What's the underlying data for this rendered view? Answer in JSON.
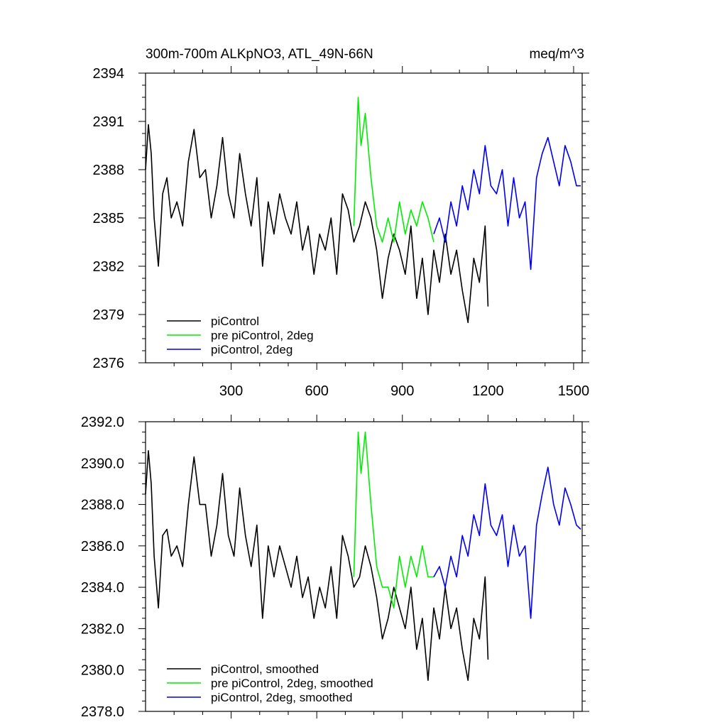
{
  "chart_data": [
    {
      "type": "line",
      "title": "300m-700m ALKpNO3, ATL_49N-66N",
      "units": "meq/m^3",
      "xlim": [
        0,
        1530
      ],
      "ylim": [
        2376,
        2394
      ],
      "xticks": [
        300,
        600,
        900,
        1200,
        1500
      ],
      "yticks": [
        2376,
        2379,
        2382,
        2385,
        2388,
        2391,
        2394
      ],
      "ytick_labels": [
        "2376",
        "2379",
        "2382",
        "2385",
        "2388",
        "2391",
        "2394"
      ],
      "legend": "bottom-left",
      "series": [
        {
          "name": "piControl",
          "color": "#000000",
          "x": [
            0,
            10,
            20,
            30,
            45,
            60,
            75,
            90,
            110,
            130,
            150,
            170,
            190,
            210,
            230,
            250,
            270,
            290,
            310,
            330,
            350,
            370,
            390,
            410,
            430,
            450,
            470,
            490,
            510,
            530,
            550,
            570,
            590,
            610,
            630,
            650,
            670,
            690,
            710,
            730,
            750,
            770,
            790,
            810,
            830,
            850,
            870,
            890,
            910,
            930,
            950,
            970,
            990,
            1010,
            1030,
            1050,
            1070,
            1090,
            1110,
            1130,
            1150,
            1170,
            1190,
            1200
          ],
          "y": [
            2388.0,
            2390.8,
            2389.0,
            2385.0,
            2382.0,
            2386.5,
            2387.5,
            2385.0,
            2386.0,
            2384.5,
            2388.5,
            2390.5,
            2387.5,
            2388.0,
            2385.0,
            2387.0,
            2390.0,
            2386.5,
            2385.0,
            2389.0,
            2386.5,
            2384.5,
            2387.5,
            2382.0,
            2386.0,
            2384.0,
            2386.5,
            2385.0,
            2384.0,
            2386.0,
            2383.0,
            2384.5,
            2381.5,
            2384.0,
            2383.0,
            2385.0,
            2381.5,
            2386.5,
            2385.5,
            2383.5,
            2384.5,
            2386.0,
            2385.0,
            2383.0,
            2380.0,
            2382.5,
            2384.0,
            2383.0,
            2381.5,
            2384.5,
            2380.0,
            2382.5,
            2379.0,
            2383.0,
            2381.0,
            2384.0,
            2381.5,
            2383.0,
            2380.5,
            2378.5,
            2382.5,
            2381.0,
            2384.5,
            2379.5
          ]
        },
        {
          "name": "pre piControl, 2deg",
          "color": "#00ee00",
          "x": [
            730,
            745,
            755,
            770,
            790,
            810,
            830,
            850,
            870,
            890,
            910,
            930,
            950,
            970,
            990,
            1010
          ],
          "y": [
            2384.5,
            2392.5,
            2389.5,
            2391.5,
            2387.5,
            2384.5,
            2383.5,
            2385.0,
            2383.5,
            2386.0,
            2384.0,
            2385.5,
            2384.5,
            2386.0,
            2385.0,
            2383.5
          ]
        },
        {
          "name": "piControl, 2deg",
          "color": "#0000ee",
          "x": [
            1010,
            1030,
            1050,
            1070,
            1090,
            1110,
            1130,
            1150,
            1170,
            1190,
            1210,
            1230,
            1250,
            1270,
            1290,
            1310,
            1330,
            1350,
            1370,
            1390,
            1410,
            1430,
            1450,
            1470,
            1490,
            1510,
            1525
          ],
          "y": [
            2384.0,
            2385.0,
            2383.5,
            2386.0,
            2384.5,
            2387.0,
            2385.5,
            2388.0,
            2386.5,
            2389.5,
            2387.0,
            2386.5,
            2388.0,
            2384.5,
            2387.5,
            2385.0,
            2386.0,
            2381.8,
            2387.5,
            2389.0,
            2390.0,
            2388.5,
            2387.0,
            2389.5,
            2388.5,
            2387.0,
            2387.0
          ]
        }
      ]
    },
    {
      "type": "line",
      "title": "",
      "xlim": [
        0,
        1530
      ],
      "ylim": [
        2378.0,
        2392.0
      ],
      "xticks": [
        300,
        600,
        900,
        1200,
        1500
      ],
      "yticks": [
        2378.0,
        2380.0,
        2382.0,
        2384.0,
        2386.0,
        2388.0,
        2390.0,
        2392.0
      ],
      "ytick_labels": [
        "2378.0",
        "2380.0",
        "2382.0",
        "2384.0",
        "2386.0",
        "2388.0",
        "2390.0",
        "2392.0"
      ],
      "legend": "bottom-left",
      "series": [
        {
          "name": "piControl, smoothed",
          "color": "#000000",
          "x": [
            0,
            10,
            20,
            30,
            45,
            60,
            75,
            90,
            110,
            130,
            150,
            170,
            190,
            210,
            230,
            250,
            270,
            290,
            310,
            330,
            350,
            370,
            390,
            410,
            430,
            450,
            470,
            490,
            510,
            530,
            550,
            570,
            590,
            610,
            630,
            650,
            670,
            690,
            710,
            730,
            750,
            770,
            790,
            810,
            830,
            850,
            870,
            890,
            910,
            930,
            950,
            970,
            990,
            1010,
            1030,
            1050,
            1070,
            1090,
            1110,
            1130,
            1150,
            1170,
            1190,
            1200
          ],
          "y": [
            2388.5,
            2390.6,
            2389.0,
            2385.5,
            2383.0,
            2386.5,
            2386.8,
            2385.5,
            2386.0,
            2385.0,
            2388.0,
            2390.3,
            2388.0,
            2388.0,
            2385.5,
            2387.0,
            2389.5,
            2386.5,
            2385.5,
            2388.8,
            2386.5,
            2385.0,
            2387.0,
            2382.5,
            2386.0,
            2384.5,
            2386.0,
            2385.0,
            2384.0,
            2385.5,
            2383.5,
            2384.5,
            2382.5,
            2384.0,
            2383.0,
            2385.0,
            2382.5,
            2386.5,
            2385.5,
            2384.0,
            2384.5,
            2386.0,
            2385.0,
            2383.5,
            2381.5,
            2382.5,
            2384.0,
            2383.0,
            2382.0,
            2384.0,
            2381.0,
            2382.5,
            2379.5,
            2383.0,
            2381.5,
            2384.0,
            2382.0,
            2383.0,
            2381.0,
            2379.5,
            2382.5,
            2381.5,
            2384.5,
            2380.5
          ]
        },
        {
          "name": "pre piControl, 2deg, smoothed",
          "color": "#00ee00",
          "x": [
            730,
            745,
            755,
            770,
            790,
            810,
            830,
            850,
            870,
            890,
            910,
            930,
            950,
            970,
            990,
            1010
          ],
          "y": [
            2384.5,
            2391.5,
            2389.5,
            2391.5,
            2388.0,
            2385.0,
            2384.0,
            2384.0,
            2383.0,
            2385.5,
            2384.0,
            2385.5,
            2384.5,
            2386.0,
            2384.5,
            2384.5
          ]
        },
        {
          "name": "piControl, 2deg, smoothed",
          "color": "#0000ee",
          "x": [
            1010,
            1030,
            1050,
            1070,
            1090,
            1110,
            1130,
            1150,
            1170,
            1190,
            1210,
            1230,
            1250,
            1270,
            1290,
            1310,
            1330,
            1350,
            1370,
            1390,
            1410,
            1430,
            1450,
            1470,
            1490,
            1510,
            1525
          ],
          "y": [
            2384.5,
            2385.0,
            2384.0,
            2385.5,
            2384.5,
            2386.5,
            2385.5,
            2387.5,
            2386.5,
            2389.0,
            2387.0,
            2386.5,
            2387.5,
            2385.0,
            2387.0,
            2385.5,
            2386.0,
            2382.5,
            2387.0,
            2388.5,
            2389.8,
            2388.0,
            2387.0,
            2388.8,
            2388.0,
            2387.0,
            2386.8
          ]
        }
      ]
    }
  ]
}
